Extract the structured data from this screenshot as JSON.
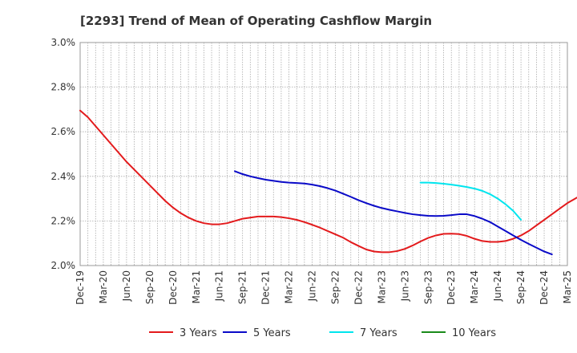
{
  "chart_data": {
    "type": "line",
    "title": "[2293]  Trend of Mean of Operating Cashflow Margin",
    "xlabel": "",
    "ylabel": "",
    "ylim": [
      2.0,
      3.0
    ],
    "yticks": [
      "3.0%",
      "2.8%",
      "2.6%",
      "2.4%",
      "2.2%",
      "2.0%"
    ],
    "ytick_values": [
      3.0,
      2.8,
      2.6,
      2.4,
      2.2,
      2.0
    ],
    "x_start": "2019-12",
    "x_end": "2025-03",
    "xticks": [
      "Dec-19",
      "Mar-20",
      "Jun-20",
      "Sep-20",
      "Dec-20",
      "Mar-21",
      "Jun-21",
      "Sep-21",
      "Dec-21",
      "Mar-22",
      "Jun-22",
      "Sep-22",
      "Dec-22",
      "Mar-23",
      "Jun-23",
      "Sep-23",
      "Dec-23",
      "Mar-24",
      "Jun-24",
      "Sep-24",
      "Dec-24",
      "Mar-25"
    ],
    "grid": true,
    "legend_position": "bottom",
    "series": [
      {
        "name": "3 Years",
        "color": "#e31a1c",
        "start": "2019-12",
        "values": [
          2.695,
          2.665,
          2.625,
          2.585,
          2.545,
          2.505,
          2.465,
          2.43,
          2.395,
          2.36,
          2.325,
          2.29,
          2.26,
          2.235,
          2.215,
          2.2,
          2.19,
          2.185,
          2.185,
          2.19,
          2.2,
          2.21,
          2.215,
          2.22,
          2.22,
          2.22,
          2.217,
          2.212,
          2.205,
          2.195,
          2.183,
          2.17,
          2.155,
          2.14,
          2.125,
          2.105,
          2.088,
          2.072,
          2.063,
          2.06,
          2.06,
          2.065,
          2.075,
          2.09,
          2.108,
          2.124,
          2.135,
          2.142,
          2.143,
          2.141,
          2.133,
          2.12,
          2.11,
          2.106,
          2.106,
          2.11,
          2.12,
          2.135,
          2.155,
          2.18,
          2.205,
          2.23,
          2.255,
          2.28,
          2.3,
          2.32,
          2.335,
          2.34,
          2.34,
          2.33,
          2.31,
          2.275,
          2.22
        ]
      },
      {
        "name": "5 Years",
        "color": "#0a0ac8",
        "start": "2021-08",
        "values": [
          2.423,
          2.41,
          2.4,
          2.392,
          2.385,
          2.38,
          2.375,
          2.372,
          2.37,
          2.368,
          2.363,
          2.356,
          2.347,
          2.336,
          2.322,
          2.308,
          2.293,
          2.28,
          2.268,
          2.258,
          2.25,
          2.243,
          2.236,
          2.23,
          2.226,
          2.223,
          2.222,
          2.223,
          2.226,
          2.23,
          2.23,
          2.222,
          2.21,
          2.195,
          2.175,
          2.155,
          2.135,
          2.115,
          2.097,
          2.08,
          2.063,
          2.05
        ]
      },
      {
        "name": "7 Years",
        "color": "#00e5ee",
        "start": "2023-08",
        "values": [
          2.372,
          2.372,
          2.37,
          2.367,
          2.363,
          2.358,
          2.352,
          2.345,
          2.335,
          2.32,
          2.3,
          2.275,
          2.245,
          2.205
        ]
      },
      {
        "name": "10 Years",
        "color": "#1a8a1a",
        "start": "2024-09",
        "values": []
      }
    ]
  }
}
